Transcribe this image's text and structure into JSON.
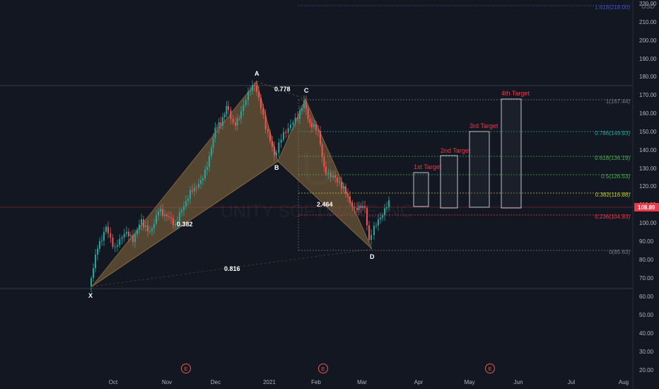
{
  "chart": {
    "currency": "USD",
    "watermark_name": "UNITY SOFTWARE INC",
    "current_price_label": "108.89",
    "price_axis": [
      "220.00",
      "210.00",
      "200.00",
      "190.00",
      "180.00",
      "170.00",
      "160.00",
      "150.00",
      "140.00",
      "130.00",
      "120.00",
      "110.00",
      "100.00",
      "90.00",
      "80.00",
      "70.00",
      "60.00",
      "50.00",
      "40.00",
      "30.00",
      "20.00"
    ],
    "time_axis": [
      "Oct",
      "Nov",
      "Dec",
      "2021",
      "Feb",
      "Mar",
      "Apr",
      "May",
      "Jun",
      "Jul",
      "Aug"
    ],
    "earnings_marker": "E",
    "points": {
      "X": "X",
      "A": "A",
      "B": "B",
      "C": "C",
      "D": "D"
    },
    "ratios": {
      "xb": "0.382",
      "ac": "0.778",
      "bd": "2.464",
      "xd": "0.816"
    },
    "fib_levels": [
      {
        "label": "1.618(218.00)",
        "value": 218.0,
        "color": "#3f51b5"
      },
      {
        "label": "1(167.44)",
        "value": 167.44,
        "color": "#787b86"
      },
      {
        "label": "0.786(149.93)",
        "value": 149.93,
        "color": "#26a69a"
      },
      {
        "label": "0.618(136.19)",
        "value": 136.19,
        "color": "#4caf50"
      },
      {
        "label": "0.5(126.53)",
        "value": 126.53,
        "color": "#4caf50"
      },
      {
        "label": "0.382(116.88)",
        "value": 116.88,
        "color": "#c0ca33"
      },
      {
        "label": "0.236(104.93)",
        "value": 104.93,
        "color": "#f23645"
      },
      {
        "label": "0(85.63)",
        "value": 85.63,
        "color": "#787b86"
      }
    ],
    "targets": [
      "1st Target",
      "2nd Target",
      "3rd Target",
      "4th Target"
    ],
    "colors": {
      "background": "#131722",
      "up": "#26a69a",
      "down": "#ef5350",
      "pattern_fill": "#8d6e3f",
      "target": "#f23645",
      "price_badge": "#f23645"
    }
  }
}
